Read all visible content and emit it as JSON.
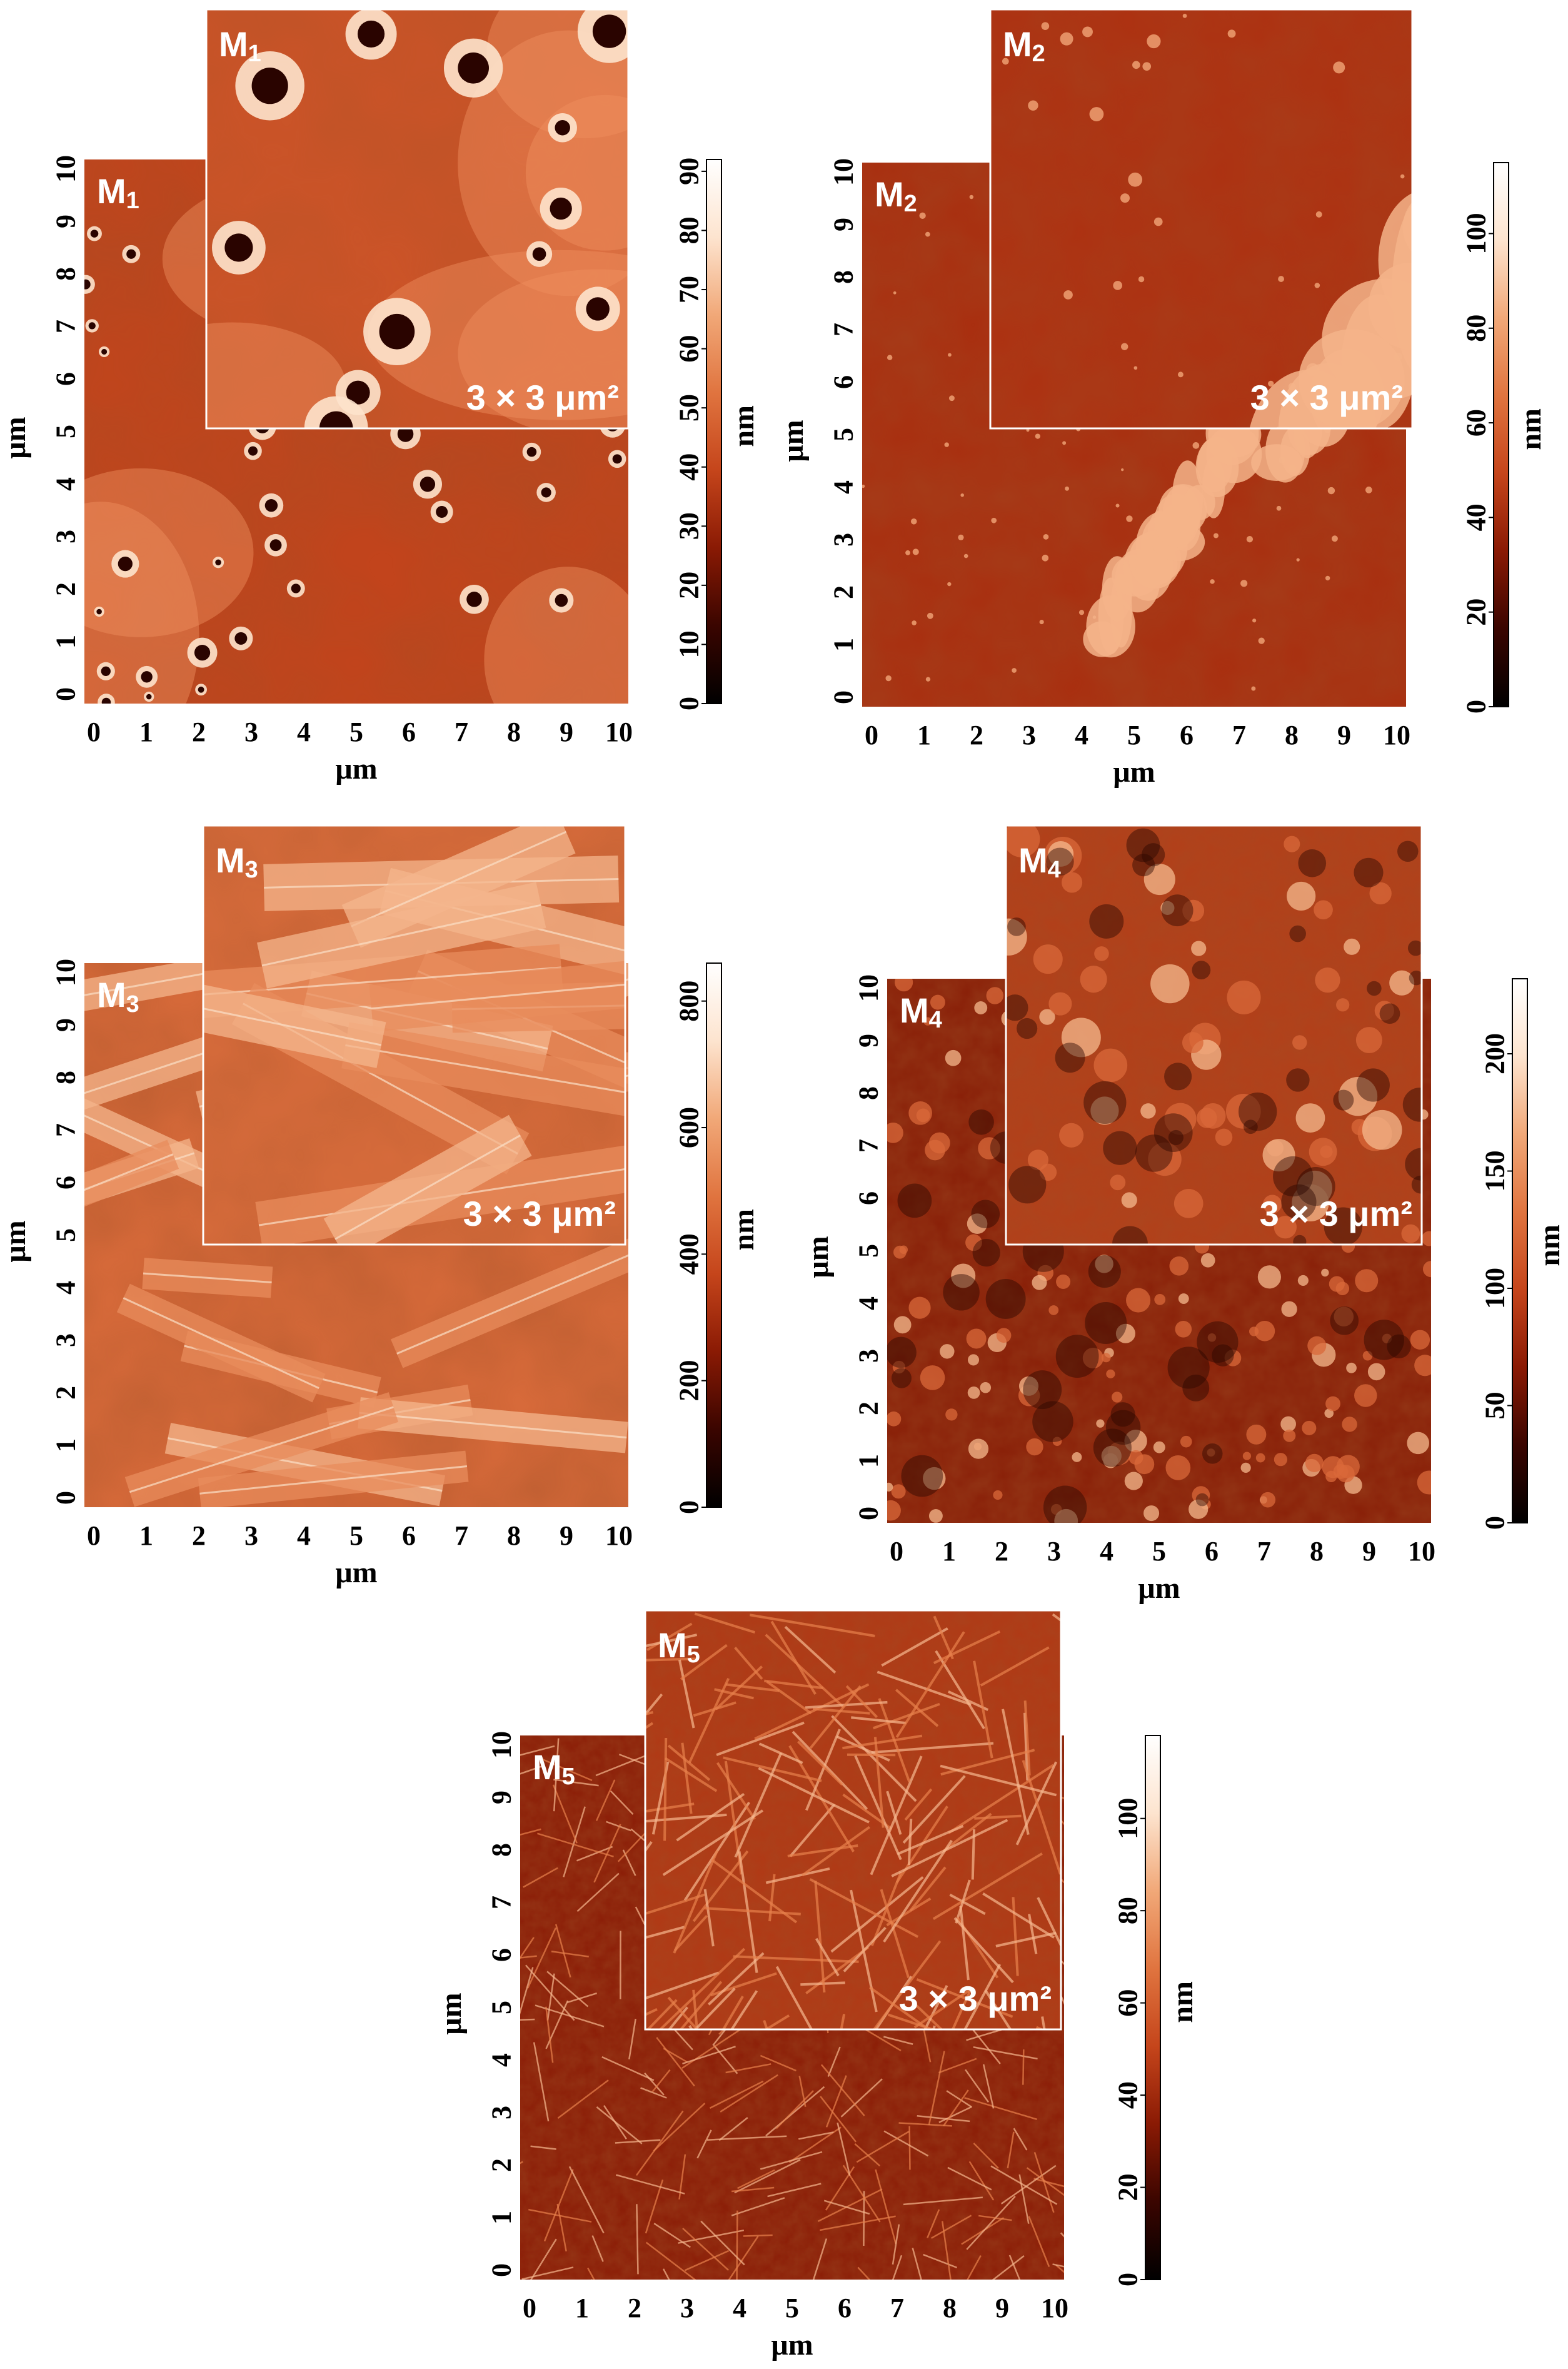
{
  "figure": {
    "axis_unit": "μm",
    "colorbar_unit": "nm",
    "inset_area_label": "3 × 3 μm²",
    "x_ticks": [
      "0",
      "1",
      "2",
      "3",
      "4",
      "5",
      "6",
      "7",
      "8",
      "9",
      "10"
    ],
    "y_ticks": [
      "0",
      "1",
      "2",
      "3",
      "4",
      "5",
      "6",
      "7",
      "8",
      "9",
      "10"
    ],
    "colormap": [
      "#000000",
      "#3a0500",
      "#8a1a04",
      "#c5451b",
      "#e0743f",
      "#f1a878",
      "#fde4cf",
      "#ffffff"
    ],
    "panels": [
      {
        "label": "M",
        "sub": "1",
        "colorbar_ticks": [
          "0",
          "10",
          "20",
          "30",
          "40",
          "50",
          "60",
          "70",
          "80",
          "90"
        ],
        "colorbar_max": 92,
        "texture": "pits",
        "base_color": "#c2441c",
        "inset_base": "#cd5428"
      },
      {
        "label": "M",
        "sub": "2",
        "colorbar_ticks": [
          "0",
          "20",
          "40",
          "60",
          "80",
          "100"
        ],
        "colorbar_max": 115,
        "texture": "clusters",
        "base_color": "#a92f10",
        "inset_base": "#ad3212"
      },
      {
        "label": "M",
        "sub": "3",
        "colorbar_ticks": [
          "0",
          "200",
          "400",
          "600",
          "800"
        ],
        "colorbar_max": 860,
        "texture": "rods",
        "base_color": "#d76a3a",
        "inset_base": "#d86c3c"
      },
      {
        "label": "M",
        "sub": "4",
        "colorbar_ticks": [
          "0",
          "50",
          "100",
          "150",
          "200"
        ],
        "colorbar_max": 232,
        "texture": "granular",
        "base_color": "#8a2109",
        "inset_base": "#b2401a"
      },
      {
        "label": "M",
        "sub": "5",
        "colorbar_ticks": [
          "0",
          "20",
          "40",
          "60",
          "80",
          "100"
        ],
        "colorbar_max": 118,
        "texture": "fibers",
        "base_color": "#8c1f08",
        "inset_base": "#b03a16"
      }
    ]
  }
}
